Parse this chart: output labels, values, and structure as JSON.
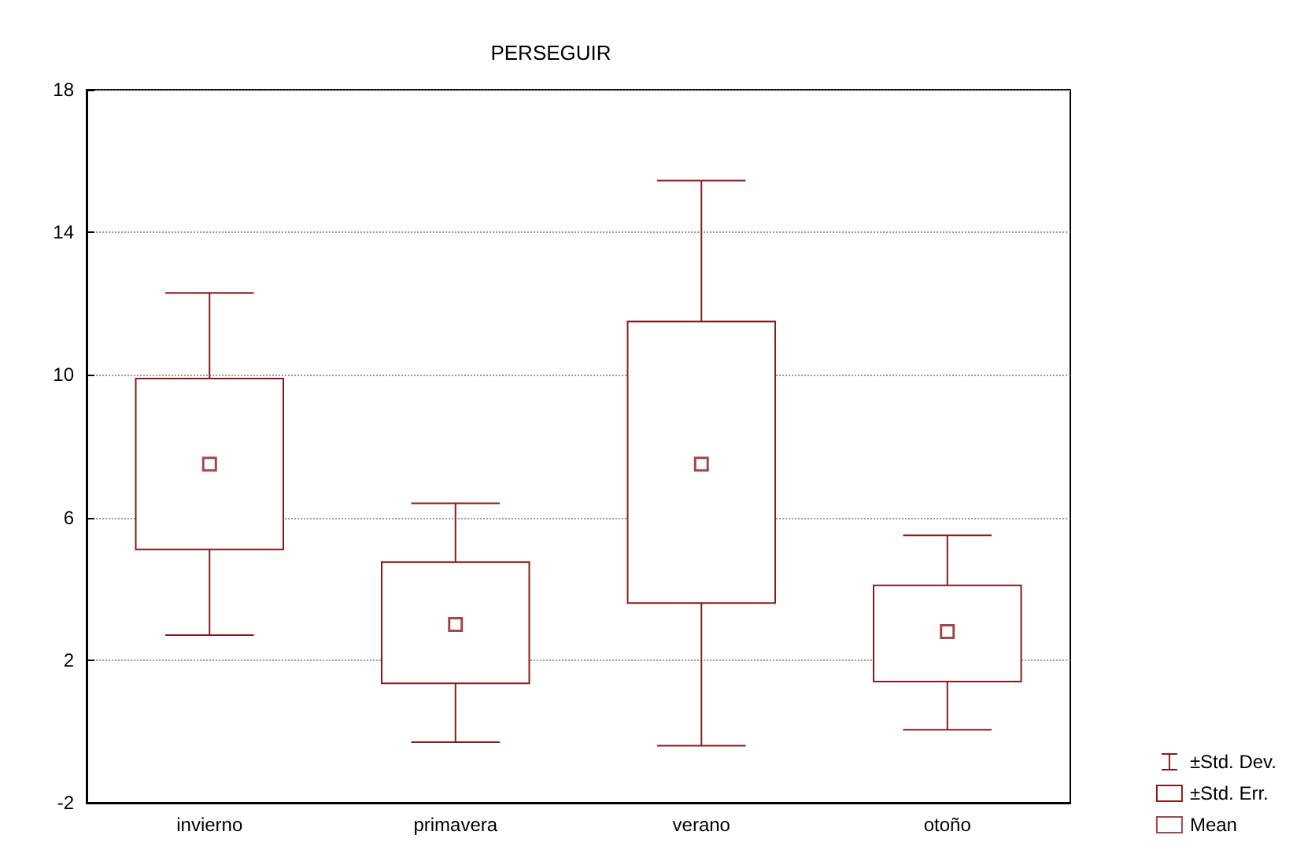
{
  "chart_data": {
    "type": "box",
    "title": "PERSEGUIR",
    "categories": [
      "invierno",
      "primavera",
      "verano",
      "otoño"
    ],
    "boxes": [
      {
        "low": 2.7,
        "q1": 5.1,
        "q3": 9.9,
        "high": 12.3
      },
      {
        "low": -0.3,
        "q1": 1.35,
        "q3": 4.75,
        "high": 6.4
      },
      {
        "low": -0.4,
        "q1": 3.6,
        "q3": 11.5,
        "high": 15.45
      },
      {
        "low": 0.05,
        "q1": 1.4,
        "q3": 4.1,
        "high": 5.5
      }
    ],
    "color": "#8b1a1a",
    "annotations": [
      "±Std. Dev.",
      "±Std. Err."
    ],
    "series": [
      {
        "name": "Mean",
        "type": "scatter",
        "color": "#8b1a1a",
        "x": [
          "invierno",
          "primavera",
          "verano",
          "otoño"
        ],
        "values": [
          7.5,
          3.0,
          7.5,
          2.8
        ]
      }
    ],
    "ylim": [
      -2,
      18
    ],
    "yticks": [
      -2,
      2,
      6,
      10,
      14,
      18
    ],
    "grid": true,
    "legend": "bottom right",
    "marker": "square"
  }
}
